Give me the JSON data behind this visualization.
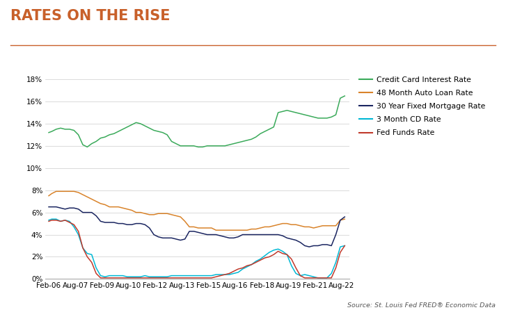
{
  "title": "RATES ON THE RISE",
  "title_color": "#c8602a",
  "title_fontsize": 15,
  "subtitle_line_color": "#c8602a",
  "source_text": "Source: St. Louis Fed FRED® Economic Data",
  "background_color": "#ffffff",
  "ylim": [
    0,
    0.19
  ],
  "ytick_values": [
    0,
    0.02,
    0.04,
    0.06,
    0.08,
    0.1,
    0.12,
    0.14,
    0.16,
    0.18
  ],
  "xtick_labels": [
    "Feb-06",
    "Aug-07",
    "Feb-09",
    "Aug-10",
    "Feb-12",
    "Aug-13",
    "Feb-15",
    "Aug-16",
    "Feb-18",
    "Aug-19",
    "Feb-21",
    "Aug-22"
  ],
  "legend_labels": [
    "Credit Card Interest Rate",
    "48 Month Auto Loan Rate",
    "30 Year Fixed Mortgage Rate",
    "3 Month CD Rate",
    "Fed Funds Rate"
  ],
  "legend_colors": [
    "#3aaa5a",
    "#d9832a",
    "#1a2560",
    "#00b8d4",
    "#c0392b"
  ],
  "series": {
    "credit_card": {
      "color": "#3aaa5a",
      "dates": [
        2006.08,
        2006.25,
        2006.5,
        2006.75,
        2007.0,
        2007.25,
        2007.5,
        2007.75,
        2008.0,
        2008.25,
        2008.5,
        2008.75,
        2009.0,
        2009.25,
        2009.5,
        2009.75,
        2010.0,
        2010.25,
        2010.5,
        2010.75,
        2011.0,
        2011.25,
        2011.5,
        2011.75,
        2012.0,
        2012.25,
        2012.5,
        2012.75,
        2013.0,
        2013.25,
        2013.5,
        2013.75,
        2014.0,
        2014.25,
        2014.5,
        2014.75,
        2015.0,
        2015.25,
        2015.5,
        2015.75,
        2016.0,
        2016.25,
        2016.5,
        2016.75,
        2017.0,
        2017.25,
        2017.5,
        2017.75,
        2018.0,
        2018.25,
        2018.5,
        2018.75,
        2019.0,
        2019.25,
        2019.5,
        2019.75,
        2020.0,
        2020.25,
        2020.5,
        2020.75,
        2021.0,
        2021.25,
        2021.5,
        2021.75,
        2022.0,
        2022.25,
        2022.5,
        2022.75
      ],
      "values": [
        0.132,
        0.133,
        0.135,
        0.136,
        0.135,
        0.135,
        0.134,
        0.13,
        0.121,
        0.119,
        0.122,
        0.124,
        0.127,
        0.128,
        0.13,
        0.131,
        0.133,
        0.135,
        0.137,
        0.139,
        0.141,
        0.14,
        0.138,
        0.136,
        0.134,
        0.133,
        0.132,
        0.13,
        0.124,
        0.122,
        0.12,
        0.12,
        0.12,
        0.12,
        0.119,
        0.119,
        0.12,
        0.12,
        0.12,
        0.12,
        0.12,
        0.121,
        0.122,
        0.123,
        0.124,
        0.125,
        0.126,
        0.128,
        0.131,
        0.133,
        0.135,
        0.137,
        0.15,
        0.151,
        0.152,
        0.151,
        0.15,
        0.149,
        0.148,
        0.147,
        0.146,
        0.145,
        0.145,
        0.145,
        0.146,
        0.148,
        0.163,
        0.165
      ]
    },
    "auto_loan": {
      "color": "#d9832a",
      "dates": [
        2006.08,
        2006.25,
        2006.5,
        2006.75,
        2007.0,
        2007.25,
        2007.5,
        2007.75,
        2008.0,
        2008.25,
        2008.5,
        2008.75,
        2009.0,
        2009.25,
        2009.5,
        2009.75,
        2010.0,
        2010.25,
        2010.5,
        2010.75,
        2011.0,
        2011.25,
        2011.5,
        2011.75,
        2012.0,
        2012.25,
        2012.5,
        2012.75,
        2013.0,
        2013.25,
        2013.5,
        2013.75,
        2014.0,
        2014.25,
        2014.5,
        2014.75,
        2015.0,
        2015.25,
        2015.5,
        2015.75,
        2016.0,
        2016.25,
        2016.5,
        2016.75,
        2017.0,
        2017.25,
        2017.5,
        2017.75,
        2018.0,
        2018.25,
        2018.5,
        2018.75,
        2019.0,
        2019.25,
        2019.5,
        2019.75,
        2020.0,
        2020.25,
        2020.5,
        2020.75,
        2021.0,
        2021.25,
        2021.5,
        2021.75,
        2022.0,
        2022.25,
        2022.5,
        2022.75
      ],
      "values": [
        0.075,
        0.077,
        0.079,
        0.079,
        0.079,
        0.079,
        0.079,
        0.078,
        0.076,
        0.074,
        0.072,
        0.07,
        0.068,
        0.067,
        0.065,
        0.065,
        0.065,
        0.064,
        0.063,
        0.062,
        0.06,
        0.06,
        0.059,
        0.058,
        0.058,
        0.059,
        0.059,
        0.059,
        0.058,
        0.057,
        0.056,
        0.052,
        0.047,
        0.047,
        0.046,
        0.046,
        0.046,
        0.046,
        0.044,
        0.044,
        0.044,
        0.044,
        0.044,
        0.044,
        0.044,
        0.044,
        0.045,
        0.045,
        0.046,
        0.047,
        0.047,
        0.048,
        0.049,
        0.05,
        0.05,
        0.049,
        0.049,
        0.048,
        0.047,
        0.047,
        0.046,
        0.047,
        0.048,
        0.048,
        0.048,
        0.048,
        0.053,
        0.054
      ]
    },
    "mortgage": {
      "color": "#1a2560",
      "dates": [
        2006.08,
        2006.25,
        2006.5,
        2006.75,
        2007.0,
        2007.25,
        2007.5,
        2007.75,
        2008.0,
        2008.25,
        2008.5,
        2008.75,
        2009.0,
        2009.25,
        2009.5,
        2009.75,
        2010.0,
        2010.25,
        2010.5,
        2010.75,
        2011.0,
        2011.25,
        2011.5,
        2011.75,
        2012.0,
        2012.25,
        2012.5,
        2012.75,
        2013.0,
        2013.25,
        2013.5,
        2013.75,
        2014.0,
        2014.25,
        2014.5,
        2014.75,
        2015.0,
        2015.25,
        2015.5,
        2015.75,
        2016.0,
        2016.25,
        2016.5,
        2016.75,
        2017.0,
        2017.25,
        2017.5,
        2017.75,
        2018.0,
        2018.25,
        2018.5,
        2018.75,
        2019.0,
        2019.25,
        2019.5,
        2019.75,
        2020.0,
        2020.25,
        2020.5,
        2020.75,
        2021.0,
        2021.25,
        2021.5,
        2021.75,
        2022.0,
        2022.25,
        2022.5,
        2022.75
      ],
      "values": [
        0.065,
        0.065,
        0.065,
        0.064,
        0.063,
        0.064,
        0.064,
        0.063,
        0.06,
        0.06,
        0.06,
        0.057,
        0.052,
        0.051,
        0.051,
        0.051,
        0.05,
        0.05,
        0.049,
        0.049,
        0.05,
        0.05,
        0.049,
        0.046,
        0.04,
        0.038,
        0.037,
        0.037,
        0.037,
        0.036,
        0.035,
        0.036,
        0.043,
        0.043,
        0.042,
        0.041,
        0.04,
        0.04,
        0.04,
        0.039,
        0.038,
        0.037,
        0.037,
        0.038,
        0.04,
        0.04,
        0.04,
        0.04,
        0.04,
        0.04,
        0.04,
        0.04,
        0.04,
        0.039,
        0.037,
        0.036,
        0.035,
        0.033,
        0.03,
        0.029,
        0.03,
        0.03,
        0.031,
        0.031,
        0.03,
        0.04,
        0.053,
        0.056
      ]
    },
    "cd_rate": {
      "color": "#00b8d4",
      "dates": [
        2006.08,
        2006.25,
        2006.5,
        2006.75,
        2007.0,
        2007.25,
        2007.5,
        2007.75,
        2008.0,
        2008.25,
        2008.5,
        2008.75,
        2009.0,
        2009.25,
        2009.5,
        2009.75,
        2010.0,
        2010.25,
        2010.5,
        2010.75,
        2011.0,
        2011.25,
        2011.5,
        2011.75,
        2012.0,
        2012.25,
        2012.5,
        2012.75,
        2013.0,
        2013.25,
        2013.5,
        2013.75,
        2014.0,
        2014.25,
        2014.5,
        2014.75,
        2015.0,
        2015.25,
        2015.5,
        2015.75,
        2016.0,
        2016.25,
        2016.5,
        2016.75,
        2017.0,
        2017.25,
        2017.5,
        2017.75,
        2018.0,
        2018.25,
        2018.5,
        2018.75,
        2019.0,
        2019.25,
        2019.5,
        2019.75,
        2020.0,
        2020.25,
        2020.5,
        2020.75,
        2021.0,
        2021.25,
        2021.5,
        2021.75,
        2022.0,
        2022.25,
        2022.5,
        2022.75
      ],
      "values": [
        0.053,
        0.054,
        0.054,
        0.052,
        0.053,
        0.052,
        0.047,
        0.04,
        0.028,
        0.023,
        0.022,
        0.01,
        0.003,
        0.002,
        0.003,
        0.003,
        0.003,
        0.003,
        0.002,
        0.002,
        0.002,
        0.002,
        0.003,
        0.002,
        0.002,
        0.002,
        0.002,
        0.002,
        0.003,
        0.003,
        0.003,
        0.003,
        0.003,
        0.003,
        0.003,
        0.003,
        0.003,
        0.003,
        0.004,
        0.004,
        0.004,
        0.004,
        0.005,
        0.006,
        0.009,
        0.011,
        0.013,
        0.016,
        0.018,
        0.021,
        0.024,
        0.026,
        0.027,
        0.025,
        0.022,
        0.012,
        0.005,
        0.003,
        0.004,
        0.003,
        0.002,
        0.001,
        0.001,
        0.001,
        0.005,
        0.015,
        0.029,
        0.03
      ]
    },
    "fed_funds": {
      "color": "#c0392b",
      "dates": [
        2006.08,
        2006.25,
        2006.5,
        2006.75,
        2007.0,
        2007.25,
        2007.5,
        2007.75,
        2008.0,
        2008.25,
        2008.5,
        2008.75,
        2009.0,
        2009.25,
        2009.5,
        2009.75,
        2010.0,
        2010.25,
        2010.5,
        2010.75,
        2011.0,
        2011.25,
        2011.5,
        2011.75,
        2012.0,
        2012.25,
        2012.5,
        2012.75,
        2013.0,
        2013.25,
        2013.5,
        2013.75,
        2014.0,
        2014.25,
        2014.5,
        2014.75,
        2015.0,
        2015.25,
        2015.5,
        2015.75,
        2016.0,
        2016.25,
        2016.5,
        2016.75,
        2017.0,
        2017.25,
        2017.5,
        2017.75,
        2018.0,
        2018.25,
        2018.5,
        2018.75,
        2019.0,
        2019.25,
        2019.5,
        2019.75,
        2020.0,
        2020.25,
        2020.5,
        2020.75,
        2021.0,
        2021.25,
        2021.5,
        2021.75,
        2022.0,
        2022.25,
        2022.5,
        2022.75
      ],
      "values": [
        0.052,
        0.053,
        0.053,
        0.052,
        0.053,
        0.051,
        0.049,
        0.043,
        0.028,
        0.02,
        0.015,
        0.005,
        0.001,
        0.001,
        0.001,
        0.001,
        0.001,
        0.001,
        0.001,
        0.001,
        0.001,
        0.001,
        0.001,
        0.001,
        0.001,
        0.001,
        0.001,
        0.001,
        0.001,
        0.001,
        0.001,
        0.001,
        0.001,
        0.001,
        0.001,
        0.001,
        0.001,
        0.001,
        0.002,
        0.003,
        0.004,
        0.005,
        0.007,
        0.009,
        0.01,
        0.012,
        0.013,
        0.015,
        0.017,
        0.019,
        0.02,
        0.022,
        0.025,
        0.023,
        0.022,
        0.018,
        0.01,
        0.003,
        0.001,
        0.001,
        0.001,
        0.001,
        0.001,
        0.001,
        0.001,
        0.01,
        0.024,
        0.03
      ]
    }
  }
}
